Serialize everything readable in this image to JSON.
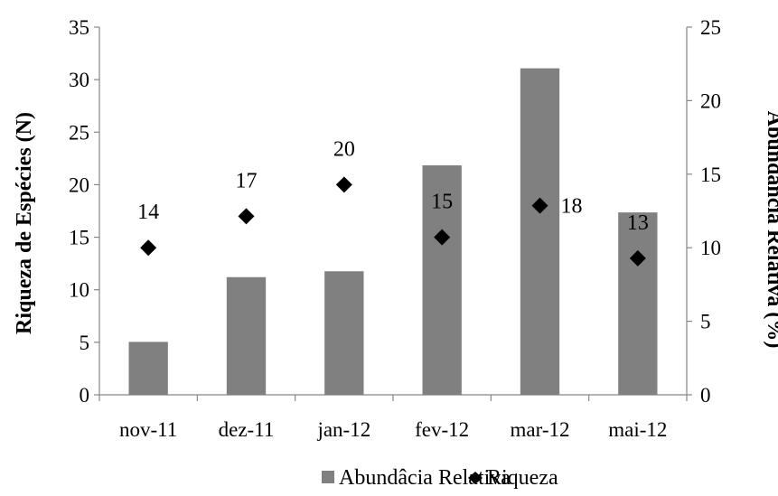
{
  "chart_data": {
    "type": "bar",
    "categories": [
      "nov-11",
      "dez-11",
      "jan-12",
      "fev-12",
      "mar-12",
      "mai-12"
    ],
    "series": [
      {
        "name": "Abundâcia Relativa",
        "type": "bar",
        "axis": "right",
        "color": "#808080",
        "values": [
          3.6,
          8.0,
          8.4,
          15.6,
          22.2,
          12.4
        ]
      },
      {
        "name": "Riqueza",
        "type": "scatter",
        "marker": "diamond",
        "axis": "left",
        "color": "#000000",
        "values": [
          14,
          17,
          20,
          15,
          18,
          13
        ],
        "labels": [
          "14",
          "17",
          "20",
          "15",
          "18",
          "13"
        ]
      }
    ],
    "ylabel": "Riqueza de Espécies (N)",
    "y2label": "Abundância Relativa (%)",
    "ylim": [
      0,
      35
    ],
    "yticks": [
      0,
      5,
      10,
      15,
      20,
      25,
      30,
      35
    ],
    "y2lim": [
      0,
      25
    ],
    "y2ticks": [
      0,
      5,
      10,
      15,
      20,
      25
    ],
    "grid": false,
    "legend_position": "bottom"
  }
}
